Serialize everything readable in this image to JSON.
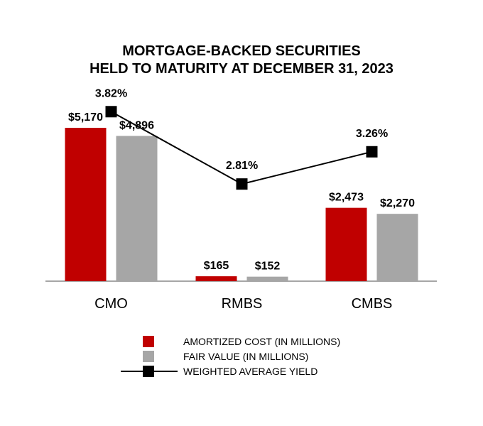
{
  "chart_data": {
    "type": "bar",
    "title": "MORTGAGE-BACKED SECURITIES",
    "subtitle": "HELD TO MATURITY AT DECEMBER 31, 2023",
    "categories": [
      "CMO",
      "RMBS",
      "CMBS"
    ],
    "series": [
      {
        "name": "AMORTIZED COST (IN MILLIONS)",
        "color": "#c00000",
        "values": [
          5170,
          165,
          2473
        ],
        "labels": [
          "$5,170",
          "$165",
          "$2,473"
        ]
      },
      {
        "name": "FAIR VALUE (IN MILLIONS)",
        "color": "#a6a6a6",
        "values": [
          4896,
          152,
          2270
        ],
        "labels": [
          "$4,896",
          "$152",
          "$2,270"
        ]
      }
    ],
    "line_series": {
      "name": "WEIGHTED AVERAGE YIELD",
      "type": "line",
      "color": "#000000",
      "values": [
        3.82,
        2.81,
        3.26
      ],
      "labels": [
        "3.82%",
        "2.81%",
        "3.26%"
      ]
    },
    "ylim": [
      0,
      6000
    ],
    "y2lim": [
      0,
      5.5
    ],
    "grid": false,
    "legend_position": "bottom"
  }
}
